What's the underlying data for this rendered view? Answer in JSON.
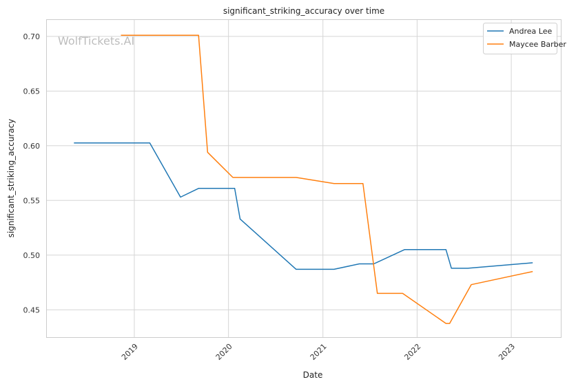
{
  "watermark": "WolfTickets.AI",
  "chart_data": {
    "type": "line",
    "title": "significant_striking_accuracy over time",
    "xlabel": "Date",
    "ylabel": "significant_striking_accuracy",
    "xlim": [
      "2018-01-27",
      "2023-07-12"
    ],
    "ylim": [
      0.425,
      0.715
    ],
    "x_ticks": [
      {
        "date": "2019-01-01",
        "label": "2019"
      },
      {
        "date": "2020-01-01",
        "label": "2020"
      },
      {
        "date": "2021-01-01",
        "label": "2021"
      },
      {
        "date": "2022-01-01",
        "label": "2022"
      },
      {
        "date": "2023-01-01",
        "label": "2023"
      }
    ],
    "y_ticks": [
      {
        "value": 0.45,
        "label": "0.45"
      },
      {
        "value": 0.5,
        "label": "0.50"
      },
      {
        "value": 0.55,
        "label": "0.55"
      },
      {
        "value": 0.6,
        "label": "0.60"
      },
      {
        "value": 0.65,
        "label": "0.65"
      },
      {
        "value": 0.7,
        "label": "0.70"
      }
    ],
    "grid": true,
    "legend_position": "top-right",
    "series": [
      {
        "name": "Andrea Lee",
        "color": "#1f77b4",
        "points": [
          {
            "x": "2018-05-12",
            "y": 0.6025
          },
          {
            "x": "2019-03-02",
            "y": 0.6025
          },
          {
            "x": "2019-06-29",
            "y": 0.553
          },
          {
            "x": "2019-09-07",
            "y": 0.561
          },
          {
            "x": "2020-01-25",
            "y": 0.561
          },
          {
            "x": "2020-02-15",
            "y": 0.533
          },
          {
            "x": "2020-09-19",
            "y": 0.487
          },
          {
            "x": "2021-02-13",
            "y": 0.487
          },
          {
            "x": "2021-05-22",
            "y": 0.492
          },
          {
            "x": "2021-07-17",
            "y": 0.492
          },
          {
            "x": "2021-11-13",
            "y": 0.505
          },
          {
            "x": "2022-04-23",
            "y": 0.505
          },
          {
            "x": "2022-05-14",
            "y": 0.488
          },
          {
            "x": "2022-07-16",
            "y": 0.488
          },
          {
            "x": "2023-03-25",
            "y": 0.493
          }
        ]
      },
      {
        "name": "Maycee Barber",
        "color": "#ff7f0e",
        "points": [
          {
            "x": "2018-11-10",
            "y": 0.701
          },
          {
            "x": "2019-09-07",
            "y": 0.701
          },
          {
            "x": "2019-10-12",
            "y": 0.594
          },
          {
            "x": "2020-01-18",
            "y": 0.571
          },
          {
            "x": "2020-09-19",
            "y": 0.571
          },
          {
            "x": "2021-02-13",
            "y": 0.5655
          },
          {
            "x": "2021-06-05",
            "y": 0.5655
          },
          {
            "x": "2021-07-31",
            "y": 0.465
          },
          {
            "x": "2021-11-06",
            "y": 0.465
          },
          {
            "x": "2022-04-23",
            "y": 0.4375
          },
          {
            "x": "2022-05-07",
            "y": 0.4375
          },
          {
            "x": "2022-07-30",
            "y": 0.473
          },
          {
            "x": "2023-03-25",
            "y": 0.485
          }
        ]
      }
    ]
  }
}
